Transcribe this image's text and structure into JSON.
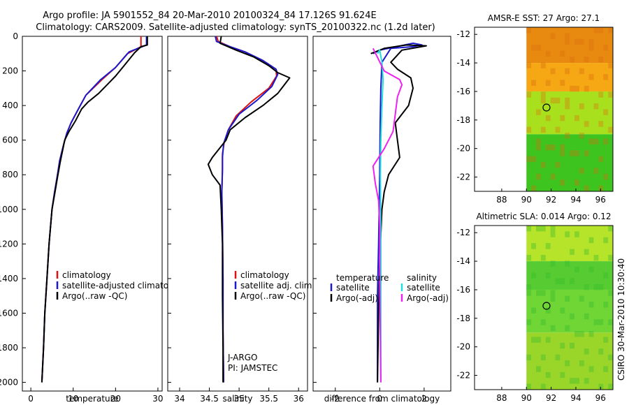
{
  "header": {
    "line1": "Argo profile: JA 5901552_84 20-Mar-2010 20100324_84 17.126S 91.624E",
    "line2": "Climatology: CARS2009. Satellite-adjusted climatology: synTS_20100322.nc (1.2d later)"
  },
  "colors": {
    "clim": "#dd1111",
    "sat": "#1a1acc",
    "argo": "#000000",
    "sal_sat": "#22dddd",
    "sal_argo": "#ee22ee"
  },
  "chart_data": [
    {
      "id": "temperature",
      "type": "line",
      "xlabel": "temperature",
      "ylabel": "",
      "xlim": [
        -2,
        31
      ],
      "ylim": [
        2050,
        0
      ],
      "xticks": [
        0,
        10,
        20,
        30
      ],
      "yticks": [
        0,
        200,
        400,
        600,
        800,
        1000,
        1200,
        1400,
        1600,
        1800,
        2000
      ],
      "legend": [
        "climatology",
        "satellite-adjusted climatology",
        "Argo(..raw -QC)"
      ],
      "series": [
        {
          "name": "climatology",
          "color_key": "clim",
          "points": [
            [
              26,
              0
            ],
            [
              26,
              60
            ],
            [
              22.8,
              100
            ],
            [
              20,
              180
            ],
            [
              16.8,
              250
            ],
            [
              13,
              340
            ],
            [
              11,
              430
            ],
            [
              9.5,
              500
            ],
            [
              8.5,
              560
            ],
            [
              7.8,
              620
            ],
            [
              6.8,
              720
            ],
            [
              6.3,
              800
            ],
            [
              5.6,
              900
            ],
            [
              5,
              1000
            ],
            [
              4.3,
              1200
            ],
            [
              3.8,
              1400
            ],
            [
              3.3,
              1600
            ],
            [
              3,
              1800
            ],
            [
              2.6,
              2000
            ]
          ]
        },
        {
          "name": "satellite-adjusted climatology",
          "color_key": "sat",
          "points": [
            [
              27.3,
              0
            ],
            [
              27.3,
              50
            ],
            [
              23.2,
              90
            ],
            [
              20,
              180
            ],
            [
              16.5,
              250
            ],
            [
              13,
              340
            ],
            [
              11,
              430
            ],
            [
              9.5,
              500
            ],
            [
              8.5,
              560
            ],
            [
              7.8,
              620
            ],
            [
              6.8,
              720
            ],
            [
              6.3,
              800
            ],
            [
              5.6,
              900
            ],
            [
              5,
              1000
            ],
            [
              4.3,
              1200
            ],
            [
              3.8,
              1400
            ],
            [
              3.3,
              1600
            ],
            [
              3,
              1800
            ],
            [
              2.6,
              2000
            ]
          ]
        },
        {
          "name": "Argo(..raw -QC)",
          "color_key": "argo",
          "points": [
            [
              27.5,
              0
            ],
            [
              27.5,
              50
            ],
            [
              26,
              60
            ],
            [
              24.5,
              95
            ],
            [
              22,
              170
            ],
            [
              20,
              230
            ],
            [
              18,
              280
            ],
            [
              16,
              330
            ],
            [
              13.5,
              380
            ],
            [
              12,
              420
            ],
            [
              10.5,
              490
            ],
            [
              9,
              550
            ],
            [
              8,
              600
            ],
            [
              7,
              720
            ],
            [
              6.4,
              800
            ],
            [
              5.7,
              900
            ],
            [
              5,
              1000
            ],
            [
              4.3,
              1200
            ],
            [
              3.8,
              1400
            ],
            [
              3.3,
              1600
            ],
            [
              3,
              1800
            ],
            [
              2.6,
              2000
            ]
          ]
        }
      ]
    },
    {
      "id": "salinity",
      "type": "line",
      "xlabel": "salinity",
      "ylabel": "",
      "xlim": [
        33.8,
        36.15
      ],
      "ylim": [
        2050,
        0
      ],
      "xticks": [
        34,
        34.5,
        35,
        35.5,
        36
      ],
      "legend": [
        "climatology",
        "satellite adj. clim.",
        "Argo(..raw -QC)"
      ],
      "annotations": [
        "J-ARGO",
        "PI: JAMSTEC"
      ],
      "series": [
        {
          "name": "climatology",
          "color_key": "clim",
          "points": [
            [
              34.62,
              0
            ],
            [
              34.65,
              30
            ],
            [
              34.85,
              60
            ],
            [
              35.1,
              90
            ],
            [
              35.4,
              140
            ],
            [
              35.62,
              190
            ],
            [
              35.63,
              230
            ],
            [
              35.5,
              300
            ],
            [
              35.2,
              380
            ],
            [
              34.95,
              460
            ],
            [
              34.82,
              540
            ],
            [
              34.75,
              610
            ],
            [
              34.72,
              680
            ],
            [
              34.72,
              760
            ],
            [
              34.71,
              900
            ],
            [
              34.72,
              1100
            ],
            [
              34.73,
              1400
            ],
            [
              34.73,
              1700
            ],
            [
              34.74,
              2000
            ]
          ]
        },
        {
          "name": "satellite adj. clim.",
          "color_key": "sat",
          "points": [
            [
              34.6,
              0
            ],
            [
              34.62,
              30
            ],
            [
              34.85,
              60
            ],
            [
              35.1,
              90
            ],
            [
              35.4,
              140
            ],
            [
              35.62,
              190
            ],
            [
              35.65,
              220
            ],
            [
              35.55,
              290
            ],
            [
              35.3,
              370
            ],
            [
              35.0,
              450
            ],
            [
              34.82,
              540
            ],
            [
              34.74,
              620
            ],
            [
              34.72,
              700
            ],
            [
              34.72,
              780
            ],
            [
              34.71,
              900
            ],
            [
              34.72,
              1100
            ],
            [
              34.73,
              1400
            ],
            [
              34.73,
              1700
            ],
            [
              34.74,
              2000
            ]
          ]
        },
        {
          "name": "Argo(..raw -QC)",
          "color_key": "argo",
          "points": [
            [
              34.7,
              0
            ],
            [
              34.68,
              40
            ],
            [
              34.95,
              80
            ],
            [
              35.25,
              120
            ],
            [
              35.5,
              170
            ],
            [
              35.65,
              210
            ],
            [
              35.85,
              240
            ],
            [
              35.65,
              330
            ],
            [
              35.4,
              400
            ],
            [
              35.1,
              470
            ],
            [
              34.85,
              540
            ],
            [
              34.78,
              600
            ],
            [
              34.55,
              700
            ],
            [
              34.48,
              740
            ],
            [
              34.55,
              800
            ],
            [
              34.68,
              860
            ],
            [
              34.7,
              1000
            ],
            [
              34.72,
              1200
            ],
            [
              34.72,
              1500
            ],
            [
              34.73,
              1800
            ],
            [
              34.73,
              2000
            ]
          ]
        }
      ]
    },
    {
      "id": "difference",
      "type": "line",
      "xlabel": "difference from climatology",
      "ylabel": "",
      "xlim": [
        -3,
        3.2
      ],
      "ylim": [
        2050,
        0
      ],
      "xticks": [
        -2,
        0,
        2
      ],
      "legend_titles": [
        "temperature",
        "salinity"
      ],
      "legend": [
        "satellite",
        "Argo(-adj)",
        "satellite",
        "Argo(-adj)"
      ],
      "series": [
        {
          "name": "temperature satellite",
          "color_key": "sat",
          "points": [
            [
              -0.3,
              100
            ],
            [
              0,
              80
            ],
            [
              1.5,
              40
            ],
            [
              1.9,
              50
            ],
            [
              1.5,
              60
            ],
            [
              0.5,
              70
            ],
            [
              0.1,
              150
            ],
            [
              0.05,
              300
            ],
            [
              0.02,
              500
            ],
            [
              0,
              800
            ],
            [
              -0.05,
              1200
            ],
            [
              -0.1,
              1500
            ],
            [
              -0.1,
              2000
            ]
          ]
        },
        {
          "name": "temperature Argo(-adj)",
          "color_key": "argo",
          "points": [
            [
              -0.4,
              100
            ],
            [
              0.2,
              70
            ],
            [
              1.2,
              50
            ],
            [
              2.1,
              55
            ],
            [
              1.0,
              80
            ],
            [
              0.5,
              150
            ],
            [
              0.8,
              190
            ],
            [
              1.4,
              240
            ],
            [
              1.5,
              300
            ],
            [
              1.3,
              400
            ],
            [
              0.7,
              500
            ],
            [
              0.8,
              600
            ],
            [
              0.9,
              700
            ],
            [
              0.4,
              800
            ],
            [
              0.2,
              900
            ],
            [
              0.1,
              1000
            ],
            [
              0,
              1300
            ],
            [
              -0.05,
              1600
            ],
            [
              -0.1,
              2000
            ]
          ]
        },
        {
          "name": "salinity satellite",
          "color_key": "sal_sat",
          "points": [
            [
              -0.1,
              100
            ],
            [
              0,
              80
            ],
            [
              0.1,
              150
            ],
            [
              0.15,
              250
            ],
            [
              0.1,
              400
            ],
            [
              0.05,
              600
            ],
            [
              0.03,
              800
            ],
            [
              0.05,
              1200
            ],
            [
              0.05,
              1600
            ],
            [
              0.05,
              2000
            ]
          ]
        },
        {
          "name": "salinity Argo(-adj)",
          "color_key": "sal_argo",
          "points": [
            [
              -0.3,
              70
            ],
            [
              0.2,
              200
            ],
            [
              0.9,
              250
            ],
            [
              1.0,
              280
            ],
            [
              0.8,
              350
            ],
            [
              0.7,
              450
            ],
            [
              0.6,
              550
            ],
            [
              0.2,
              650
            ],
            [
              -0.3,
              750
            ],
            [
              -0.2,
              850
            ],
            [
              -0.05,
              950
            ],
            [
              0,
              1100
            ],
            [
              0,
              1400
            ],
            [
              0.05,
              2000
            ]
          ]
        }
      ]
    },
    {
      "id": "sst_map",
      "type": "heatmap",
      "title": "AMSR-E SST: 27 Argo: 27.1",
      "xlim": [
        85.8,
        97
      ],
      "ylim": [
        -23,
        -11.5
      ],
      "xticks": [
        88,
        90,
        92,
        94,
        96
      ],
      "yticks": [
        -12,
        -14,
        -16,
        -18,
        -20,
        -22
      ],
      "data_lon_range": [
        90,
        97
      ],
      "marker": {
        "lon": 91.624,
        "lat": -17.126
      },
      "color_bands": [
        {
          "lat_from": -11.5,
          "lat_to": -14,
          "color": "#e88a10"
        },
        {
          "lat_from": -14,
          "lat_to": -16,
          "color": "#f5a714"
        },
        {
          "lat_from": -16,
          "lat_to": -19,
          "color": "#a9e01e"
        },
        {
          "lat_from": -19,
          "lat_to": -23,
          "color": "#3ec41e"
        }
      ]
    },
    {
      "id": "sla_map",
      "type": "heatmap",
      "title": "Altimetric SLA: 0.014 Argo: 0.12",
      "xlim": [
        85.8,
        97
      ],
      "ylim": [
        -23,
        -11.5
      ],
      "xticks": [
        88,
        90,
        92,
        94,
        96
      ],
      "yticks": [
        -12,
        -14,
        -16,
        -18,
        -20,
        -22
      ],
      "data_lon_range": [
        90,
        97
      ],
      "marker": {
        "lon": 91.624,
        "lat": -17.126
      },
      "color_bands": [
        {
          "lat_from": -11.5,
          "lat_to": -14,
          "color": "#b5e42a"
        },
        {
          "lat_from": -14,
          "lat_to": -16,
          "color": "#56cc32"
        },
        {
          "lat_from": -16,
          "lat_to": -19,
          "color": "#6fd636"
        },
        {
          "lat_from": -19,
          "lat_to": -23,
          "color": "#9ad62a"
        }
      ]
    }
  ],
  "footer": {
    "credit": "CSIRO 30-Mar-2010 10:30:40"
  }
}
